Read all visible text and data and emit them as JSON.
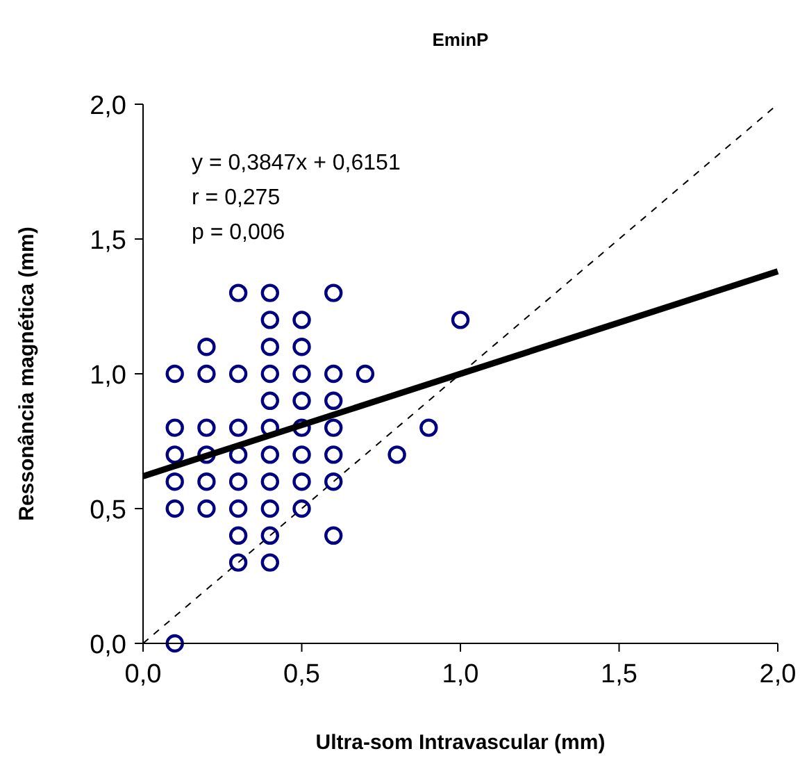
{
  "chart_data": {
    "type": "scatter",
    "title": "EminP",
    "xlabel": "Ultra-som Intravascular (mm)",
    "ylabel": "Ressonância magnética (mm)",
    "xlim": [
      0,
      2
    ],
    "ylim": [
      0,
      2
    ],
    "xticks": [
      {
        "value": 0,
        "label": "0,0"
      },
      {
        "value": 0.5,
        "label": "0,5"
      },
      {
        "value": 1,
        "label": "1,0"
      },
      {
        "value": 1.5,
        "label": "1,5"
      },
      {
        "value": 2,
        "label": "2,0"
      }
    ],
    "yticks": [
      {
        "value": 0,
        "label": "0,0"
      },
      {
        "value": 0.5,
        "label": "0,5"
      },
      {
        "value": 1,
        "label": "1,0"
      },
      {
        "value": 1.5,
        "label": "1,5"
      },
      {
        "value": 2,
        "label": "2,0"
      }
    ],
    "grid": false,
    "annotations": [
      "y = 0,3847x + 0,6151",
      "r = 0,275",
      "p = 0,006"
    ],
    "series": [
      {
        "type": "line",
        "color": "#000000",
        "line_style": "dashed",
        "marker": "none",
        "x": [
          0,
          2
        ],
        "values": [
          0,
          2
        ]
      },
      {
        "color": "#000080",
        "marker": "circle",
        "x": [
          0.1,
          0.1,
          0.1,
          0.1,
          0.1,
          0.1,
          0.2,
          0.2,
          0.2,
          0.2,
          0.2,
          0.2,
          0.3,
          0.3,
          0.3,
          0.3,
          0.3,
          0.3,
          0.3,
          0.3,
          0.4,
          0.4,
          0.4,
          0.4,
          0.4,
          0.4,
          0.4,
          0.4,
          0.4,
          0.4,
          0.4,
          0.5,
          0.5,
          0.5,
          0.5,
          0.5,
          0.5,
          0.5,
          0.5,
          0.6,
          0.6,
          0.6,
          0.6,
          0.6,
          0.6,
          0.6,
          0.7,
          0.8,
          0.9,
          1.0
        ],
        "values": [
          1.0,
          0.8,
          0.7,
          0.6,
          0.5,
          0.0,
          1.1,
          1.0,
          0.8,
          0.7,
          0.6,
          0.5,
          1.3,
          1.0,
          0.8,
          0.7,
          0.6,
          0.5,
          0.4,
          0.3,
          1.3,
          1.2,
          1.1,
          1.0,
          0.9,
          0.8,
          0.7,
          0.6,
          0.5,
          0.4,
          0.3,
          1.2,
          1.1,
          1.0,
          0.9,
          0.8,
          0.7,
          0.6,
          0.5,
          1.3,
          1.0,
          0.9,
          0.8,
          0.7,
          0.6,
          0.4,
          1.0,
          0.7,
          0.8,
          1.2
        ]
      },
      {
        "type": "line",
        "color": "#000000",
        "line_style": "solid",
        "marker": "none",
        "x": [
          0,
          2
        ],
        "values": [
          0.62,
          1.38
        ]
      }
    ]
  }
}
